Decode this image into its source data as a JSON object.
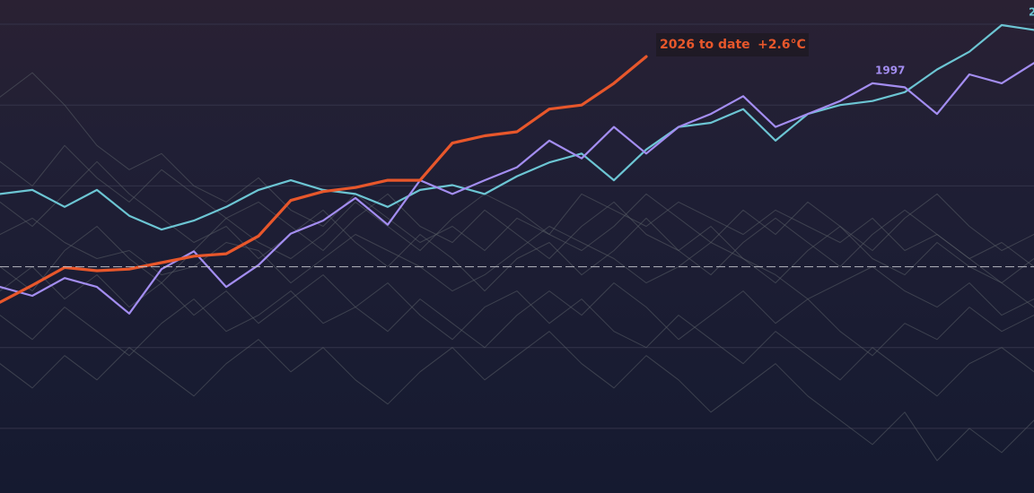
{
  "chart_data": {
    "type": "line",
    "x": [
      0,
      1,
      2,
      3,
      4,
      5,
      6,
      7,
      8,
      9,
      10,
      11,
      12,
      13,
      14,
      15,
      16,
      17,
      18,
      19,
      20,
      21,
      22,
      23,
      24,
      25,
      26,
      27,
      28,
      29,
      30,
      31,
      32
    ],
    "xlim": [
      0,
      32
    ],
    "ylim": [
      -2.8,
      3.3
    ],
    "yticks": [
      -2,
      -1,
      1,
      2,
      3
    ],
    "grid": true,
    "baseline": 0,
    "series": [
      {
        "color": "#5b6068",
        "values": [
          0.4,
          0.6,
          0.3,
          0.1,
          0.2,
          -0.1,
          0,
          0.3,
          0.2,
          -0.2,
          0.1,
          0.4,
          0.2,
          0,
          -0.3,
          -0.1,
          0.2,
          0.5,
          0.3,
          0.1,
          -0.2,
          0,
          0.3,
          0.1,
          -0.1,
          -0.4,
          -0.2,
          0,
          -0.3,
          -0.5,
          -0.2,
          -0.6,
          -0.4
        ]
      },
      {
        "color": "#5b6068",
        "values": [
          2.1,
          2.4,
          2.0,
          1.5,
          1.2,
          1.4,
          1.0,
          0.8,
          1.1,
          0.7,
          0.5,
          0.9,
          0.6,
          0.3,
          0.5,
          0.2,
          0.6,
          0.4,
          0.9,
          0.7,
          0.5,
          0.8,
          0.6,
          0.4,
          0.7,
          0.5,
          0.3,
          0.6,
          0.2,
          0.4,
          0.1,
          0.3,
          0
        ]
      },
      {
        "color": "#5b6068",
        "values": [
          -0.6,
          -0.9,
          -0.5,
          -0.8,
          -1.1,
          -0.7,
          -0.4,
          -0.8,
          -0.6,
          -0.3,
          -0.7,
          -0.5,
          -0.2,
          -0.6,
          -0.9,
          -0.5,
          -0.3,
          -0.7,
          -0.4,
          -0.8,
          -1.0,
          -0.6,
          -0.9,
          -1.2,
          -0.8,
          -1.1,
          -1.4,
          -1.0,
          -1.3,
          -1.6,
          -1.2,
          -1.0,
          -1.3
        ]
      },
      {
        "color": "#5b6068",
        "values": [
          1.3,
          1.0,
          1.5,
          1.1,
          0.8,
          1.2,
          0.9,
          0.6,
          0.8,
          0.5,
          0.2,
          0.6,
          0.9,
          0.5,
          0.3,
          0.7,
          0.4,
          0.1,
          0.5,
          0.8,
          0.4,
          0.2,
          0.5,
          0.1,
          -0.2,
          0.2,
          0.5,
          0.1,
          -0.1,
          0.3,
          0,
          -0.2,
          0.1
        ]
      },
      {
        "color": "#5b6068",
        "values": [
          -1.2,
          -1.5,
          -1.1,
          -1.4,
          -1.0,
          -1.3,
          -1.6,
          -1.2,
          -0.9,
          -1.3,
          -1.0,
          -1.4,
          -1.7,
          -1.3,
          -1.0,
          -1.4,
          -1.1,
          -0.8,
          -1.2,
          -1.5,
          -1.1,
          -1.4,
          -1.8,
          -1.5,
          -1.2,
          -1.6,
          -1.9,
          -2.2,
          -1.8,
          -2.4,
          -2.0,
          -2.3,
          -1.9
        ]
      },
      {
        "color": "#5b6068",
        "values": [
          0,
          -0.3,
          0.2,
          0.5,
          0.1,
          -0.2,
          0.2,
          0.6,
          0.3,
          0.1,
          0.4,
          0.8,
          0.5,
          0.2,
          0.6,
          0.9,
          0.7,
          0.4,
          0.2,
          0.5,
          0.9,
          0.6,
          0.3,
          0.7,
          0.4,
          0.8,
          0.5,
          0.2,
          0.6,
          0.9,
          0.5,
          0.2,
          0.4
        ]
      },
      {
        "color": "#5b6068",
        "values": [
          -0.3,
          0,
          -0.4,
          -0.1,
          -0.5,
          -0.2,
          -0.6,
          -0.3,
          -0.7,
          -0.4,
          -0.1,
          -0.5,
          -0.8,
          -0.4,
          -0.7,
          -1.0,
          -0.6,
          -0.3,
          -0.6,
          -0.2,
          -0.5,
          -0.9,
          -0.6,
          -0.3,
          -0.7,
          -0.4,
          -0.8,
          -1.1,
          -0.7,
          -0.9,
          -0.5,
          -0.8,
          -0.6
        ]
      },
      {
        "color": "#5b6068",
        "values": [
          0.8,
          0.5,
          0.9,
          1.3,
          0.9,
          0.6,
          0.3,
          0.5,
          0.1,
          0.4,
          0.7,
          0.3,
          0,
          0.4,
          0.1,
          -0.3,
          0.1,
          0.3,
          -0.1,
          0.2,
          0.6,
          0.2,
          -0.1,
          0.3,
          0.6,
          0.3,
          0,
          0.4,
          0.7,
          0.4,
          0.1,
          -0.2,
          -0.5
        ]
      },
      {
        "name": "2",
        "color": "#6cc5d3",
        "values": [
          0.9,
          0.95,
          0.74,
          0.95,
          0.63,
          0.46,
          0.57,
          0.74,
          0.95,
          1.07,
          0.95,
          0.9,
          0.74,
          0.95,
          1.01,
          0.9,
          1.12,
          1.29,
          1.4,
          1.07,
          1.45,
          1.73,
          1.78,
          1.95,
          1.56,
          1.89,
          2.0,
          2.05,
          2.16,
          2.44,
          2.66,
          2.99,
          2.93
        ]
      },
      {
        "name": "1997",
        "color": "#a38df0",
        "values": [
          -0.25,
          -0.36,
          -0.14,
          -0.25,
          -0.58,
          -0.03,
          0.19,
          -0.25,
          0.02,
          0.41,
          0.57,
          0.85,
          0.52,
          1.07,
          0.9,
          1.07,
          1.23,
          1.56,
          1.34,
          1.73,
          1.4,
          1.73,
          1.89,
          2.11,
          1.73,
          1.89,
          2.05,
          2.27,
          2.22,
          1.89,
          2.38,
          2.27,
          2.52
        ]
      },
      {
        "name": "2026 to date",
        "color": "#e8572b",
        "values": [
          -0.44,
          -0.23,
          -0.01,
          -0.05,
          -0.03,
          0.05,
          0.13,
          0.16,
          0.38,
          0.82,
          0.93,
          0.98,
          1.07,
          1.07,
          1.53,
          1.62,
          1.67,
          1.95,
          2.0,
          2.27,
          2.6,
          null,
          null,
          null,
          null,
          null,
          null,
          null,
          null,
          null,
          null,
          null,
          null
        ],
        "value_labels": [
          null,
          null,
          null,
          null,
          null,
          null,
          null,
          null,
          null,
          null,
          null,
          null,
          null,
          null,
          null,
          null,
          null,
          null,
          null,
          null,
          "+2.6°C",
          null,
          null,
          null,
          null,
          null,
          null,
          null,
          null,
          null,
          null,
          null,
          null
        ]
      }
    ]
  }
}
